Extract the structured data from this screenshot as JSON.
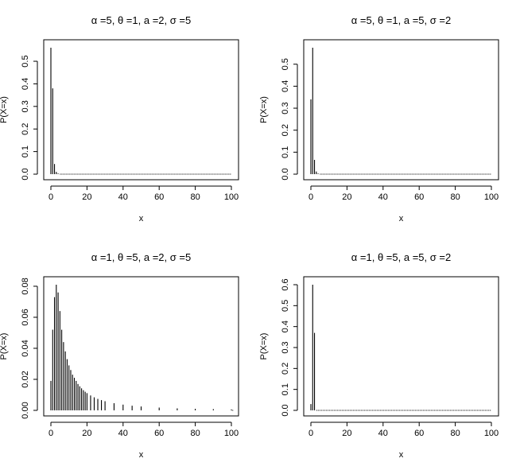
{
  "chart_data": [
    {
      "type": "bar",
      "title": "α =5, θ =1, a =2, σ =5",
      "xlabel": "x",
      "ylabel": "P(X=x)",
      "xlim": [
        0,
        100
      ],
      "ylim": [
        0,
        0.56
      ],
      "x_ticks": [
        0,
        20,
        40,
        60,
        80,
        100
      ],
      "y_ticks": [
        0.0,
        0.1,
        0.2,
        0.3,
        0.4,
        0.5
      ],
      "y_tick_labels": [
        "0.0",
        "0.1",
        "0.2",
        "0.3",
        "0.4",
        "0.5"
      ],
      "x_tick_labels": [
        "0",
        "20",
        "40",
        "60",
        "80",
        "100"
      ],
      "points": [
        [
          0,
          0.56
        ],
        [
          1,
          0.38
        ],
        [
          2,
          0.045
        ],
        [
          3,
          0.01
        ],
        [
          4,
          0.003
        ]
      ]
    },
    {
      "type": "bar",
      "title": "α =5, θ =1, a =5, σ =2",
      "xlabel": "x",
      "ylabel": "P(X=x)",
      "xlim": [
        0,
        100
      ],
      "ylim": [
        0,
        0.575
      ],
      "x_ticks": [
        0,
        20,
        40,
        60,
        80,
        100
      ],
      "y_ticks": [
        0.0,
        0.1,
        0.2,
        0.3,
        0.4,
        0.5
      ],
      "y_tick_labels": [
        "0.0",
        "0.1",
        "0.2",
        "0.3",
        "0.4",
        "0.5"
      ],
      "x_tick_labels": [
        "0",
        "20",
        "40",
        "60",
        "80",
        "100"
      ],
      "points": [
        [
          0,
          0.34
        ],
        [
          1,
          0.575
        ],
        [
          2,
          0.065
        ],
        [
          3,
          0.012
        ],
        [
          4,
          0.003
        ]
      ]
    },
    {
      "type": "bar",
      "title": "α =1, θ =5, a =2, σ =5",
      "xlabel": "x",
      "ylabel": "P(X=x)",
      "xlim": [
        0,
        100
      ],
      "ylim": [
        0,
        0.081
      ],
      "x_ticks": [
        0,
        20,
        40,
        60,
        80,
        100
      ],
      "y_ticks": [
        0.0,
        0.02,
        0.04,
        0.06,
        0.08
      ],
      "y_tick_labels": [
        "0.00",
        "0.02",
        "0.04",
        "0.06",
        "0.08"
      ],
      "x_tick_labels": [
        "0",
        "20",
        "40",
        "60",
        "80",
        "100"
      ],
      "points": [
        [
          0,
          0.019
        ],
        [
          1,
          0.052
        ],
        [
          2,
          0.073
        ],
        [
          3,
          0.081
        ],
        [
          4,
          0.076
        ],
        [
          5,
          0.064
        ],
        [
          6,
          0.052
        ],
        [
          7,
          0.044
        ],
        [
          8,
          0.038
        ],
        [
          9,
          0.033
        ],
        [
          10,
          0.029
        ],
        [
          11,
          0.026
        ],
        [
          12,
          0.023
        ],
        [
          13,
          0.021
        ],
        [
          14,
          0.019
        ],
        [
          15,
          0.017
        ],
        [
          16,
          0.0155
        ],
        [
          17,
          0.0142
        ],
        [
          18,
          0.013
        ],
        [
          19,
          0.012
        ],
        [
          20,
          0.0111
        ],
        [
          22,
          0.0096
        ],
        [
          24,
          0.0084
        ],
        [
          26,
          0.0074
        ],
        [
          28,
          0.0066
        ],
        [
          30,
          0.0059
        ],
        [
          35,
          0.0046
        ],
        [
          40,
          0.0037
        ],
        [
          45,
          0.003
        ],
        [
          50,
          0.0025
        ],
        [
          60,
          0.0018
        ],
        [
          70,
          0.0013
        ],
        [
          80,
          0.001
        ],
        [
          90,
          0.0008
        ],
        [
          100,
          0.0006
        ]
      ]
    },
    {
      "type": "bar",
      "title": "α =1, θ =5, a =5, σ =2",
      "xlabel": "x",
      "ylabel": "P(X=x)",
      "xlim": [
        0,
        100
      ],
      "ylim": [
        0,
        0.6
      ],
      "x_ticks": [
        0,
        20,
        40,
        60,
        80,
        100
      ],
      "y_ticks": [
        0.0,
        0.1,
        0.2,
        0.3,
        0.4,
        0.5,
        0.6
      ],
      "y_tick_labels": [
        "0.0",
        "0.1",
        "0.2",
        "0.3",
        "0.4",
        "0.5",
        "0.6"
      ],
      "x_tick_labels": [
        "0",
        "20",
        "40",
        "60",
        "80",
        "100"
      ],
      "points": [
        [
          0,
          0.03
        ],
        [
          1,
          0.6
        ],
        [
          2,
          0.37
        ]
      ]
    }
  ]
}
